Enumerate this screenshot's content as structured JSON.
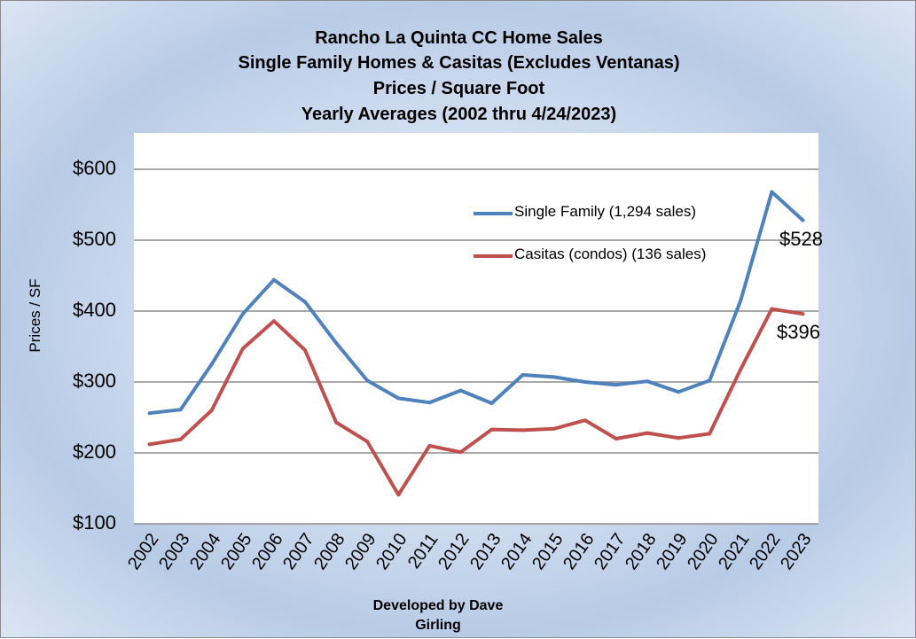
{
  "chart_data": {
    "type": "line",
    "title_lines": [
      "Rancho La Quinta CC Home Sales",
      "Single Family Homes & Casitas (Excludes Ventanas)",
      "Prices / Square Foot",
      "Yearly Averages  (2002 thru 4/24/2023)"
    ],
    "ylabel": "Prices / SF",
    "ylim": [
      100,
      650
    ],
    "yticks": [
      100,
      200,
      300,
      400,
      500,
      600
    ],
    "ytick_labels": [
      "$100",
      "$200",
      "$300",
      "$400",
      "$500",
      "$600"
    ],
    "x": [
      "2002",
      "2003",
      "2004",
      "2005",
      "2006",
      "2007",
      "2008",
      "2009",
      "2010",
      "2011",
      "2012",
      "2013",
      "2014",
      "2015",
      "2016",
      "2017",
      "2018",
      "2019",
      "2020",
      "2021",
      "2022",
      "2023"
    ],
    "series": [
      {
        "name": "Single Family (1,294 sales)",
        "color": "#4f81bd",
        "values": [
          256,
          261,
          325,
          396,
          444,
          413,
          355,
          302,
          277,
          271,
          288,
          270,
          310,
          307,
          300,
          296,
          301,
          286,
          302,
          415,
          568,
          528
        ],
        "end_label": "$528"
      },
      {
        "name": "Casitas (condos) (136 sales)",
        "color": "#c0504d",
        "values": [
          212,
          219,
          260,
          347,
          386,
          345,
          243,
          216,
          141,
          210,
          201,
          233,
          232,
          234,
          246,
          220,
          228,
          221,
          227,
          318,
          403,
          396
        ],
        "end_label": "$396"
      }
    ],
    "grid": true,
    "legend_position": "top-right inside plot",
    "footer_lines": [
      "Developed by Dave",
      "Girling"
    ]
  }
}
